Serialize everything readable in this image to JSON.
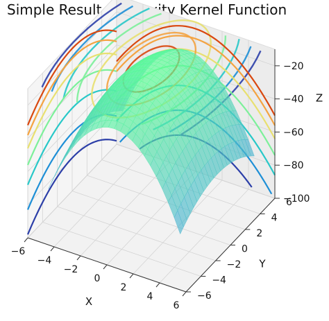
{
  "chart_data": {
    "type": "surface3d",
    "title": "Simple Result Convexity Kernel Function",
    "xlabel": "X",
    "ylabel": "Y",
    "zlabel": "Z",
    "xlim": [
      -6,
      6
    ],
    "ylim": [
      -6,
      6
    ],
    "zlim": [
      -100,
      -10
    ],
    "x_ticks": [
      "−6",
      "−4",
      "−2",
      "0",
      "2",
      "4",
      "6"
    ],
    "y_ticks": [
      "−6",
      "−4",
      "−2",
      "0",
      "2",
      "4",
      "6"
    ],
    "z_ticks": [
      "−100",
      "−80",
      "−60",
      "−40",
      "−20"
    ],
    "surface": {
      "x_range": [
        -5,
        5
      ],
      "y_range": [
        -5,
        5
      ],
      "formula": "z = -10 - 2*x^2 - 0.5*y^2",
      "colormap": "winter",
      "alpha": 0.65
    },
    "contour_lines": [
      {
        "level": -100,
        "color": "#30123b"
      },
      {
        "level": -80,
        "color": "#2c3fa8"
      },
      {
        "level": -65,
        "color": "#1e8fd6"
      },
      {
        "level": -50,
        "color": "#28c8c8"
      },
      {
        "level": -38,
        "color": "#7cf09a"
      },
      {
        "level": -28,
        "color": "#e8e070"
      },
      {
        "level": -20,
        "color": "#f4a341"
      },
      {
        "level": -14,
        "color": "#d9480f"
      }
    ],
    "grid": true
  }
}
